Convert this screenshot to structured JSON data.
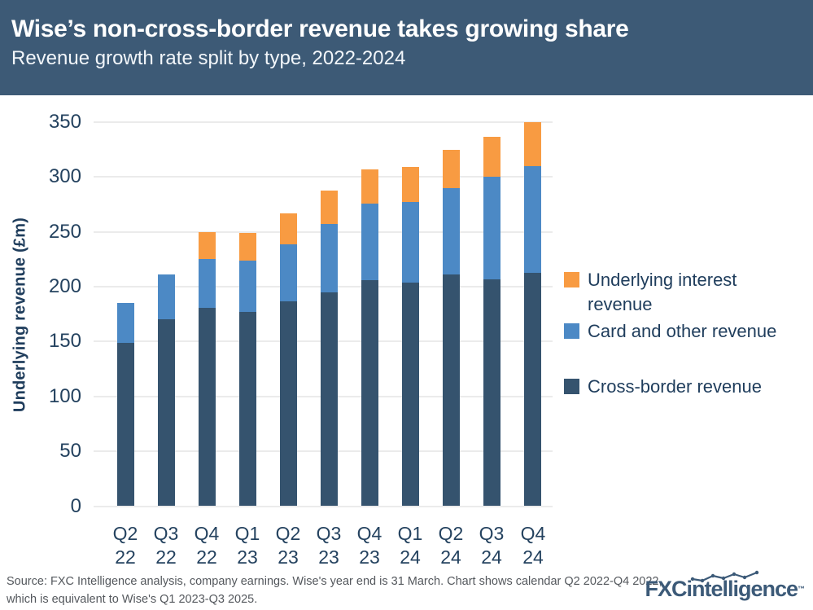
{
  "header": {
    "title": "Wise’s non-cross-border revenue takes growing share",
    "subtitle": "Revenue growth rate split by type, 2022-2024"
  },
  "chart_data": {
    "type": "bar",
    "stacked": true,
    "title": "Wise’s non-cross-border revenue takes growing share",
    "subtitle": "Revenue growth rate split by type, 2022-2024",
    "xlabel": "",
    "ylabel": "Underlying revenue (£m)",
    "ylim": [
      0,
      350
    ],
    "yticks": [
      0,
      50,
      100,
      150,
      200,
      250,
      300,
      350
    ],
    "grid": "horizontal",
    "legend_position": "right",
    "categories": [
      "Q2 22",
      "Q3 22",
      "Q4 22",
      "Q1 23",
      "Q2 23",
      "Q3 23",
      "Q4 23",
      "Q1 24",
      "Q2 24",
      "Q3 24",
      "Q4 24"
    ],
    "series": [
      {
        "name": "Cross-border revenue",
        "color": "#35536E",
        "values": [
          149,
          170,
          181,
          177,
          187,
          195,
          206,
          204,
          211,
          207,
          213
        ]
      },
      {
        "name": "Card and other revenue",
        "color": "#4C89C5",
        "values": [
          36,
          41,
          44,
          47,
          52,
          62,
          70,
          73,
          79,
          93,
          97
        ]
      },
      {
        "name": "Underlying interest revenue",
        "color": "#F89B42",
        "values": [
          0,
          0,
          25,
          25,
          28,
          31,
          31,
          32,
          35,
          37,
          40
        ]
      }
    ],
    "totals": [
      185,
      211,
      250,
      249,
      267,
      288,
      307,
      309,
      325,
      337,
      350
    ]
  },
  "footer": {
    "source": "Source: FXC Intelligence analysis, company earnings. Wise's year end is 31 March. Chart shows calendar Q2 2022-Q4 2022, which is equivalent to Wise's Q1 2023-Q3 2025.",
    "logo_text": "FXCintelligence",
    "logo_tm": "™"
  },
  "colors": {
    "header_bg": "#3D5A76",
    "title_text": "#FFFFFF",
    "axis_text": "#24425F",
    "legend_text": "#1F3D5C",
    "gridline": "#EBEBEB",
    "footer_text": "#54585D",
    "logo": "#3C5A78"
  }
}
